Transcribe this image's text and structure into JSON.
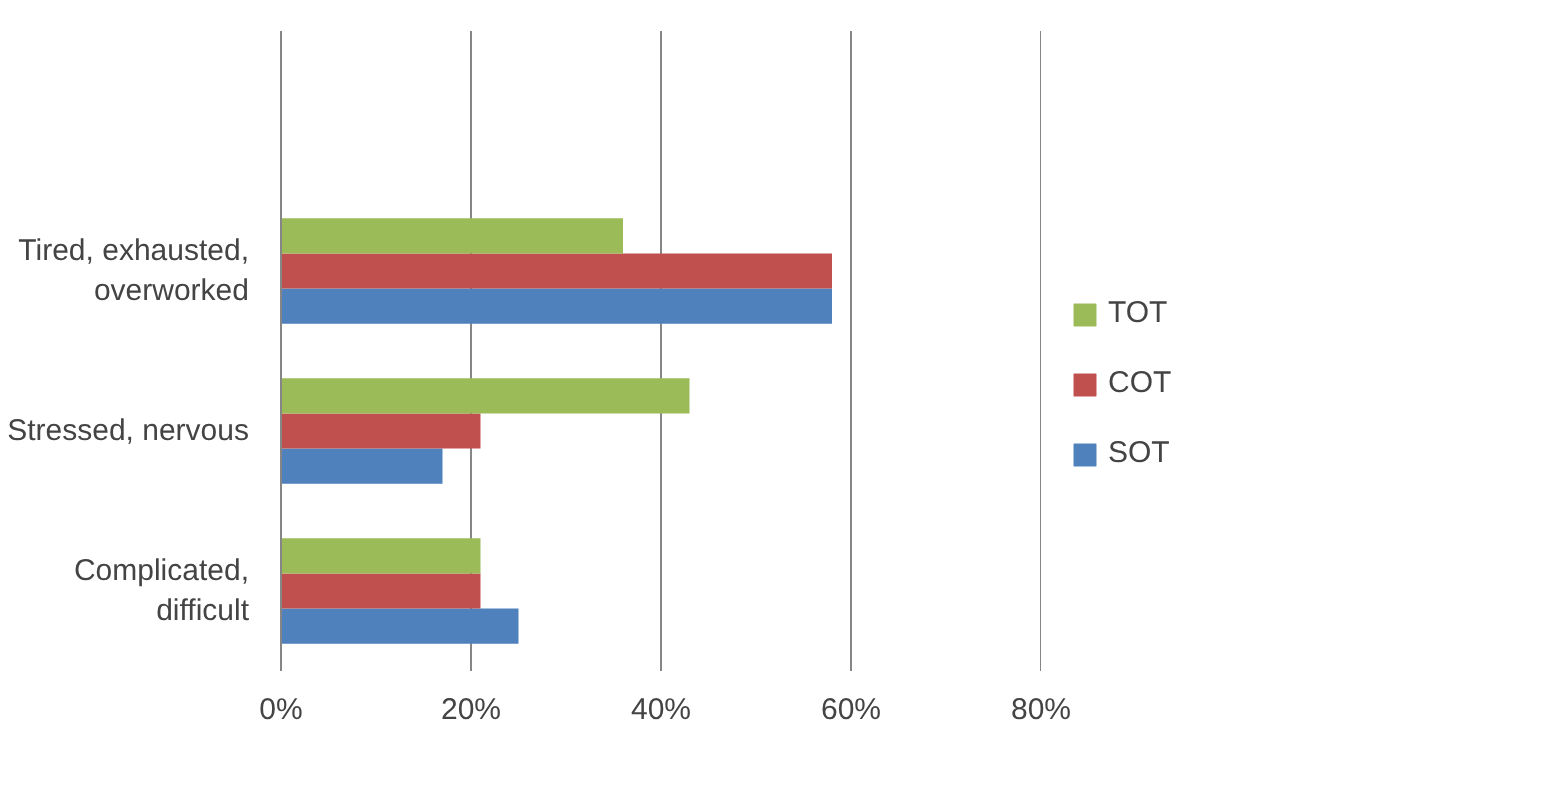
{
  "chart_data": {
    "type": "bar",
    "orientation": "horizontal",
    "categories": [
      null,
      "Tired, exhausted, overworked",
      "Stressed, nervous",
      "Complicated, difficult"
    ],
    "series": [
      {
        "name": "SOT",
        "color": "#4f81bd",
        "values": [
          null,
          58,
          17,
          25
        ]
      },
      {
        "name": "COT",
        "color": "#c0504d",
        "values": [
          null,
          58,
          21,
          21
        ]
      },
      {
        "name": "TOT",
        "color": "#9bbb59",
        "values": [
          null,
          36,
          43,
          21
        ]
      }
    ],
    "xlim": [
      0,
      80
    ],
    "xticks": [
      {
        "value": 0,
        "label": "0%"
      },
      {
        "value": 20,
        "label": "20%"
      },
      {
        "value": 40,
        "label": "40%"
      },
      {
        "value": 60,
        "label": "60%"
      },
      {
        "value": 80,
        "label": "80%"
      }
    ],
    "grid": "x",
    "legend": "right"
  }
}
